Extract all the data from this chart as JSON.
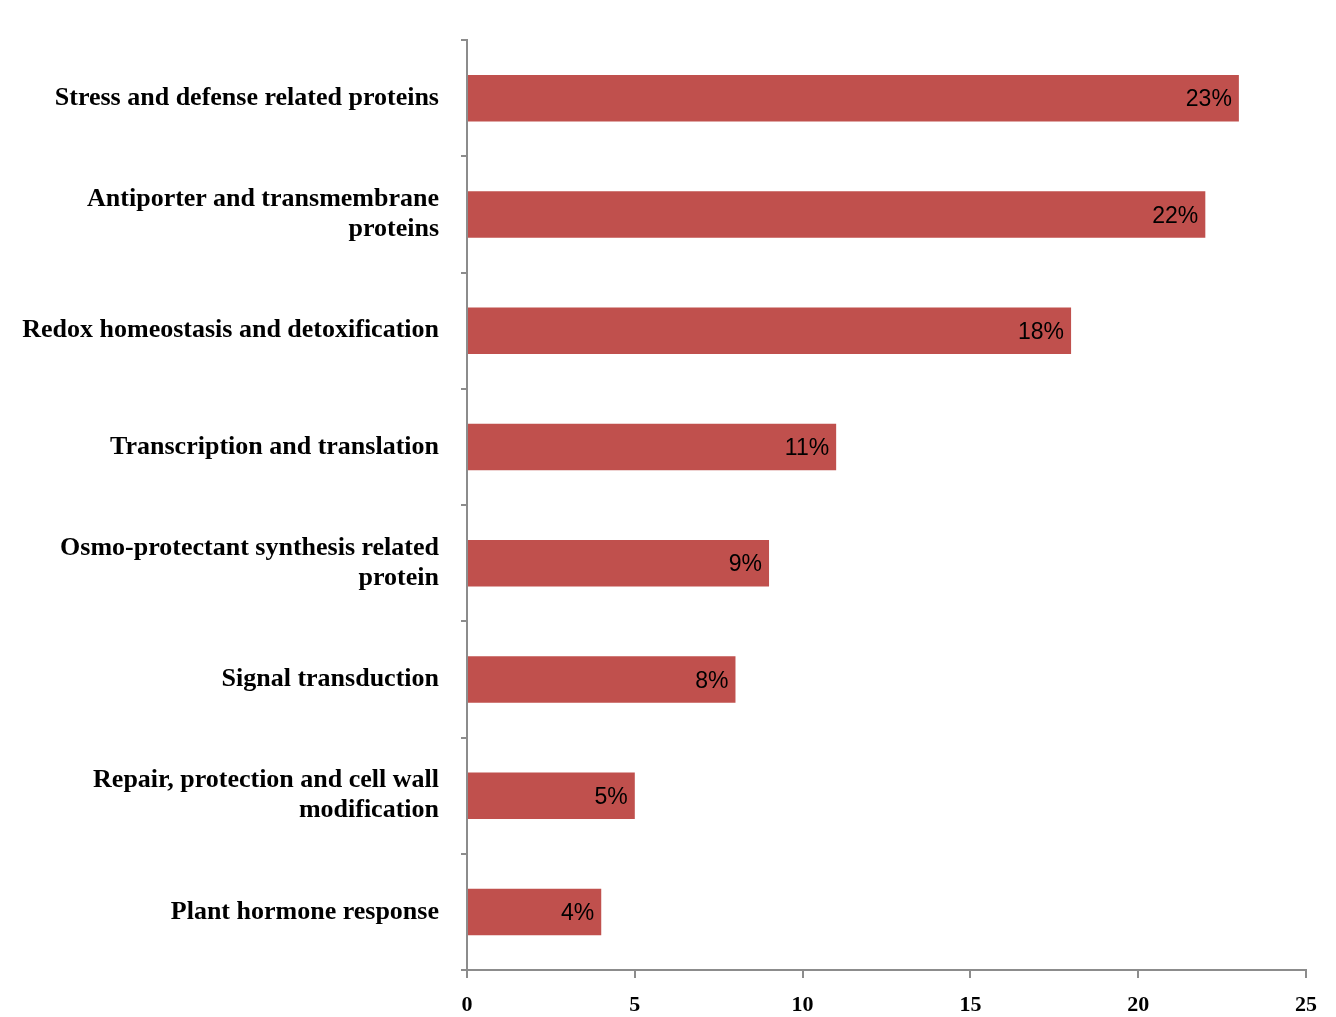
{
  "chart_data": {
    "type": "bar",
    "orientation": "horizontal",
    "categories": [
      "Stress and defense related proteins",
      "Antiporter and transmembrane proteins",
      "Redox homeostasis and detoxification",
      "Transcription and translation",
      "Osmo-protectant synthesis related protein",
      "Signal transduction",
      "Repair, protection and cell wall modification",
      "Plant hormone response"
    ],
    "values": [
      23,
      22,
      18,
      11,
      9,
      8,
      5,
      4
    ],
    "value_labels": [
      "23%",
      "22%",
      "18%",
      "11%",
      "9%",
      "8%",
      "5%",
      "4%"
    ],
    "color": "#c0504d",
    "xlim": [
      0,
      25
    ],
    "xticks": [
      0,
      5,
      10,
      15,
      20,
      25
    ],
    "grid": false,
    "legend": false
  }
}
